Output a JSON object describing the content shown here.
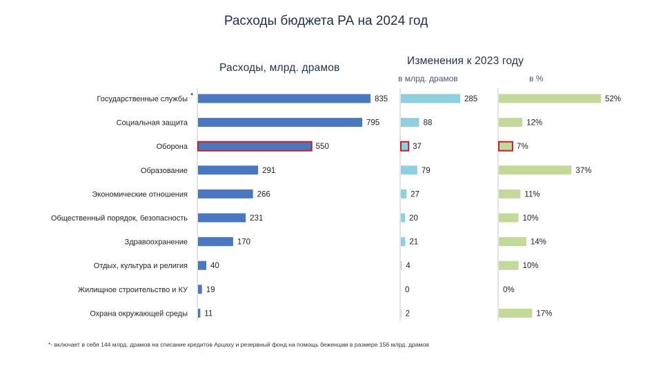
{
  "title": "Расходы бюджета РА на 2024 год",
  "footnote": "*- включает в себя 144 млрд. драмов на списание кредитов Арцаху и резервный фонд на помощь беженцам в размере 156 млрд. драмов",
  "headers": {
    "spending": "Расходы, млрд. драмов",
    "change": "Изменения к 2023 году",
    "change_abs": "в млрд. драмов",
    "change_pct": "в %"
  },
  "colors": {
    "spending_bar": "#4a78c0",
    "change_abs_bar": "#8ecfe0",
    "change_pct_bar": "#c3d99a",
    "highlight_outline": "#c0202a"
  },
  "chart_data": {
    "type": "bar",
    "orientation": "horizontal",
    "highlight": "Оборона",
    "categories": [
      "Государственные службы",
      "Социальная защита",
      "Оборона",
      "Образование",
      "Экономические отношения",
      "Общественный порядок, безопасность",
      "Здравоохранение",
      "Отдых, культура и религия",
      "Жилищное строительство и КУ",
      "Охрана окружающей среды"
    ],
    "category_marks": [
      "*",
      "",
      "",
      "",
      "",
      "",
      "",
      "",
      "",
      ""
    ],
    "series": [
      {
        "name": "Расходы, млрд. драмов",
        "values": [
          835,
          795,
          550,
          291,
          266,
          231,
          170,
          40,
          19,
          11
        ],
        "labels": [
          "835",
          "795",
          "550",
          "291",
          "266",
          "231",
          "170",
          "40",
          "19",
          "11"
        ]
      },
      {
        "name": "в млрд. драмов",
        "values": [
          285,
          88,
          37,
          79,
          27,
          20,
          21,
          4,
          0,
          2
        ],
        "labels": [
          "285",
          "88",
          "37",
          "79",
          "27",
          "20",
          "21",
          "4",
          "0",
          "2"
        ]
      },
      {
        "name": "в %",
        "values": [
          52,
          12,
          7,
          37,
          11,
          10,
          14,
          10,
          0,
          17
        ],
        "labels": [
          "52%",
          "12%",
          "7%",
          "37%",
          "11%",
          "10%",
          "14%",
          "10%",
          "0%",
          "17%"
        ]
      }
    ]
  }
}
